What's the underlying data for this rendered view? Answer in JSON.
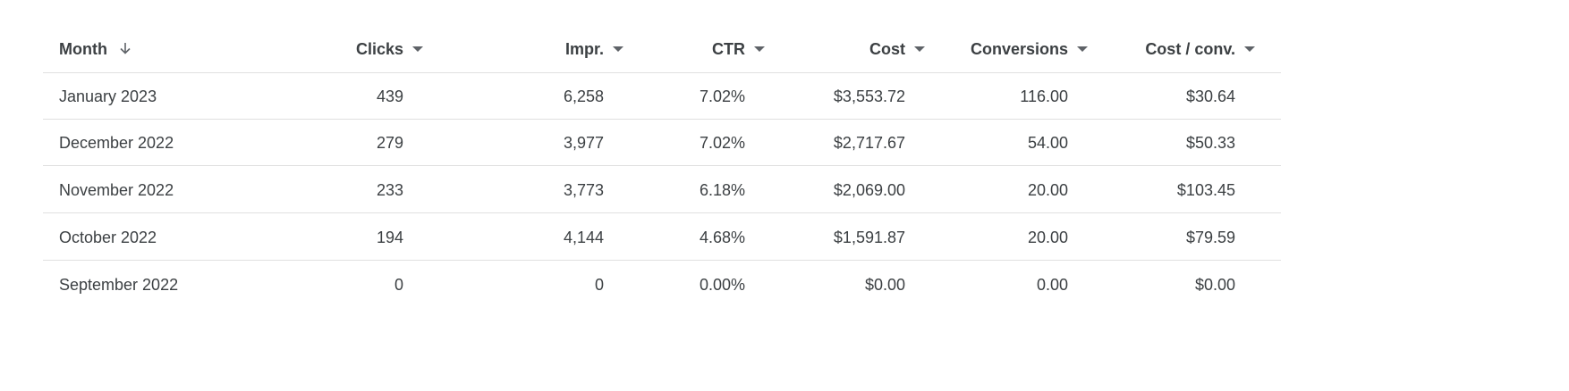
{
  "table": {
    "headers": [
      "Month",
      "Clicks",
      "Impr.",
      "CTR",
      "Cost",
      "Conversions",
      "Cost / conv."
    ],
    "rows": [
      [
        "January 2023",
        "439",
        "6,258",
        "7.02%",
        "$3,553.72",
        "116.00",
        "$30.64"
      ],
      [
        "December 2022",
        "279",
        "3,977",
        "7.02%",
        "$2,717.67",
        "54.00",
        "$50.33"
      ],
      [
        "November 2022",
        "233",
        "3,773",
        "6.18%",
        "$2,069.00",
        "20.00",
        "$103.45"
      ],
      [
        "October 2022",
        "194",
        "4,144",
        "4.68%",
        "$1,591.87",
        "20.00",
        "$79.59"
      ],
      [
        "September 2022",
        "0",
        "0",
        "0.00%",
        "$0.00",
        "0.00",
        "$0.00"
      ]
    ]
  }
}
